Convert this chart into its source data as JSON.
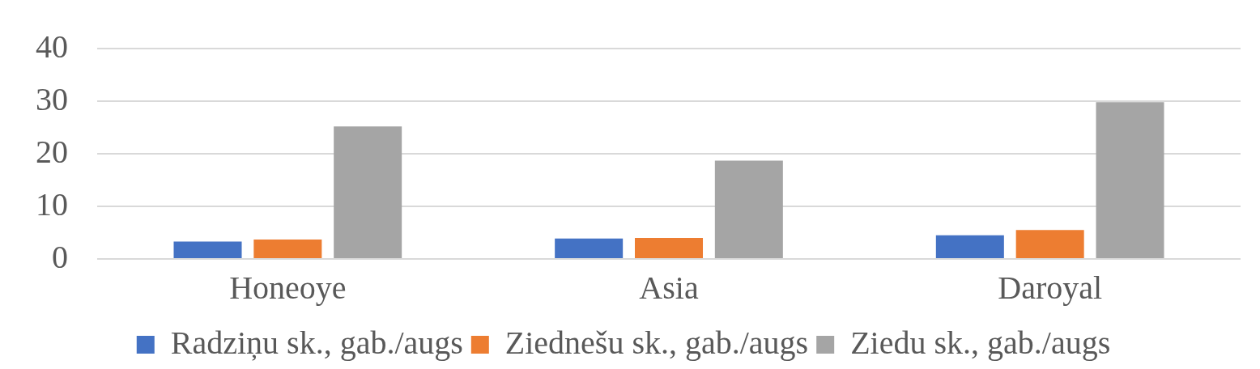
{
  "chart_data": {
    "type": "bar",
    "categories": [
      "Honeoye",
      "Asia",
      "Daroyal"
    ],
    "series": [
      {
        "name": "Radziņu sk., gab./augs",
        "color": "#4472c4",
        "values": [
          3.3,
          3.9,
          4.5
        ]
      },
      {
        "name": "Ziednešu sk., gab./augs",
        "color": "#ed7d31",
        "values": [
          3.7,
          4.0,
          5.5
        ]
      },
      {
        "name": "Ziedu sk., gab./augs",
        "color": "#a5a5a5",
        "values": [
          25.2,
          18.7,
          29.8
        ]
      }
    ],
    "ylim": [
      0,
      40
    ],
    "yticks": [
      0,
      10,
      20,
      30,
      40
    ],
    "grid": "y",
    "legend": "bottom"
  }
}
